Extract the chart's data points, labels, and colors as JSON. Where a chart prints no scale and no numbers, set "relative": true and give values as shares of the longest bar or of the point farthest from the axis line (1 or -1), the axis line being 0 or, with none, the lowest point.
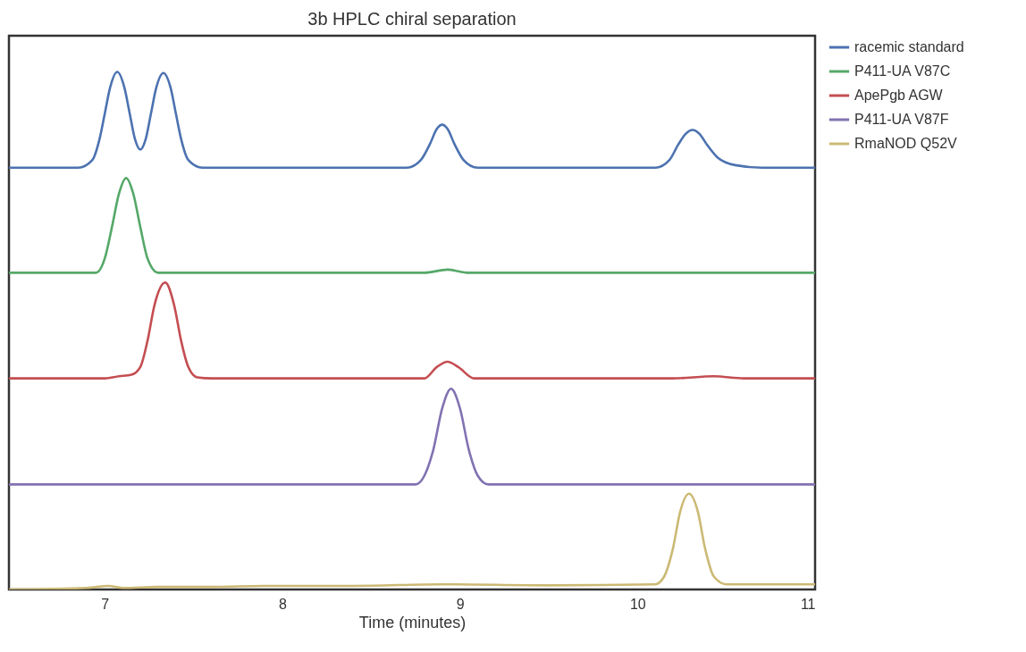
{
  "chart_data": {
    "type": "line",
    "title": "3b HPLC chiral separation",
    "xlabel": "Time (minutes)",
    "relative": true,
    "xlim": [
      6.46,
      11
    ],
    "xticks": [
      7,
      8,
      9,
      10,
      11
    ],
    "grid": false,
    "legend": "right",
    "line_style": "solid",
    "marker": "none",
    "series": [
      {
        "name": "racemic standard",
        "color": "#4c72b0",
        "x": [
          6.46,
          6.85,
          6.93,
          6.97,
          7.0,
          7.03,
          7.07,
          7.11,
          7.14,
          7.17,
          7.2,
          7.23,
          7.26,
          7.29,
          7.33,
          7.37,
          7.4,
          7.43,
          7.47,
          7.55,
          8.7,
          8.78,
          8.83,
          8.87,
          8.9,
          8.93,
          8.97,
          9.02,
          9.1,
          10.1,
          10.18,
          10.23,
          10.27,
          10.31,
          10.35,
          10.39,
          10.45,
          10.55,
          10.7,
          11
        ],
        "values": [
          0.815,
          0.815,
          0.83,
          0.87,
          0.92,
          0.97,
          1.0,
          0.97,
          0.92,
          0.87,
          0.85,
          0.87,
          0.92,
          0.97,
          0.998,
          0.97,
          0.92,
          0.87,
          0.83,
          0.815,
          0.815,
          0.83,
          0.86,
          0.89,
          0.898,
          0.89,
          0.86,
          0.83,
          0.815,
          0.815,
          0.83,
          0.86,
          0.88,
          0.888,
          0.88,
          0.86,
          0.835,
          0.82,
          0.815,
          0.815
        ]
      },
      {
        "name": "P411-UA V87C",
        "color": "#55a868",
        "x": [
          6.46,
          6.95,
          7.0,
          7.04,
          7.08,
          7.12,
          7.16,
          7.2,
          7.24,
          7.3,
          8.8,
          8.93,
          9.05,
          11
        ],
        "values": [
          0.612,
          0.612,
          0.64,
          0.7,
          0.765,
          0.795,
          0.765,
          0.7,
          0.64,
          0.612,
          0.612,
          0.618,
          0.612,
          0.612
        ]
      },
      {
        "name": "ApePgb AGW",
        "color": "#c44e52",
        "x": [
          6.46,
          7.0,
          7.08,
          7.15,
          7.2,
          7.24,
          7.28,
          7.34,
          7.39,
          7.43,
          7.47,
          7.52,
          7.6,
          8.8,
          8.87,
          8.93,
          8.99,
          9.08,
          10.2,
          10.43,
          10.6,
          11
        ],
        "values": [
          0.408,
          0.408,
          0.412,
          0.415,
          0.43,
          0.48,
          0.55,
          0.593,
          0.55,
          0.48,
          0.43,
          0.41,
          0.408,
          0.408,
          0.43,
          0.44,
          0.43,
          0.408,
          0.408,
          0.412,
          0.408,
          0.408
        ]
      },
      {
        "name": "P411-UA V87F",
        "color": "#8172b2",
        "x": [
          6.46,
          8.75,
          8.8,
          8.85,
          8.9,
          8.95,
          9.0,
          9.05,
          9.1,
          9.16,
          11
        ],
        "values": [
          0.203,
          0.203,
          0.22,
          0.27,
          0.35,
          0.388,
          0.35,
          0.27,
          0.22,
          0.203,
          0.203
        ]
      },
      {
        "name": "RmaNOD Q52V",
        "color": "#ccb974",
        "x": [
          6.46,
          6.9,
          7.02,
          7.1,
          7.3,
          7.6,
          7.9,
          8.4,
          8.9,
          9.5,
          10.1,
          10.15,
          10.2,
          10.24,
          10.29,
          10.34,
          10.38,
          10.43,
          10.5,
          11
        ],
        "values": [
          0,
          0.003,
          0.007,
          0.003,
          0.005,
          0.005,
          0.007,
          0.007,
          0.01,
          0.008,
          0.01,
          0.025,
          0.08,
          0.15,
          0.185,
          0.15,
          0.08,
          0.025,
          0.01,
          0.01
        ]
      }
    ]
  }
}
